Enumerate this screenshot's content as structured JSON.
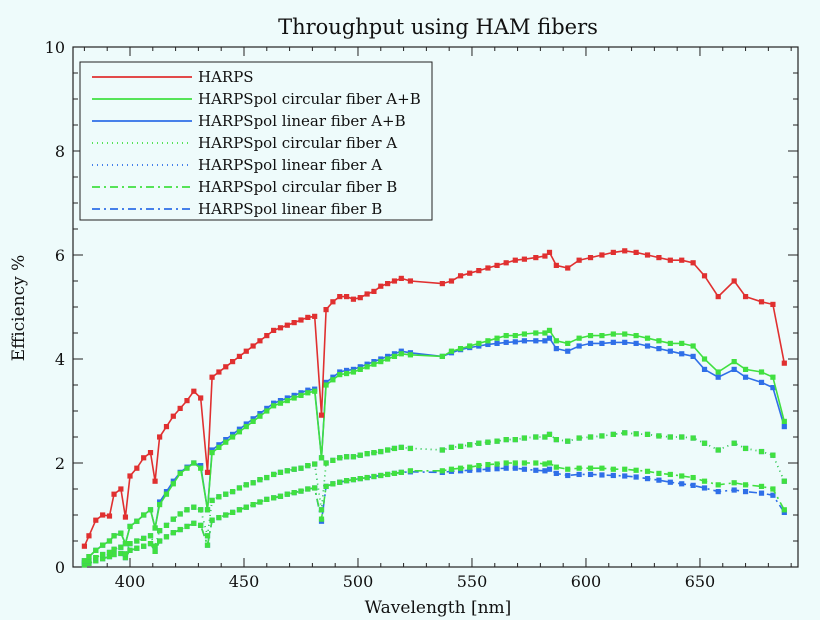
{
  "chart_data": {
    "type": "line",
    "title": "Throughput using HAM fibers",
    "xlabel": "Wavelength [nm]",
    "ylabel": "Efficiency %",
    "xlim": [
      375,
      693
    ],
    "ylim": [
      0,
      10
    ],
    "xticks": [
      400,
      450,
      500,
      550,
      600,
      650
    ],
    "yticks": [
      0,
      2,
      4,
      6,
      8,
      10
    ],
    "grid": false,
    "legend_position": "top-left",
    "x": [
      380,
      382,
      385,
      388,
      391,
      393,
      396,
      398,
      400,
      403,
      406,
      409,
      411,
      413,
      416,
      419,
      422,
      425,
      428,
      431,
      434,
      436,
      439,
      442,
      445,
      448,
      451,
      454,
      457,
      460,
      463,
      466,
      469,
      472,
      475,
      478,
      481,
      484,
      486,
      489,
      492,
      495,
      498,
      501,
      504,
      507,
      510,
      513,
      516,
      519,
      523,
      537,
      541,
      545,
      549,
      553,
      557,
      561,
      565,
      569,
      573,
      578,
      582,
      584,
      587,
      592,
      597,
      602,
      607,
      612,
      617,
      622,
      627,
      632,
      637,
      642,
      647,
      652,
      658,
      665,
      670,
      677,
      682,
      687
    ],
    "series": [
      {
        "name": "HARPS",
        "color": "#e03030",
        "dash": "solid",
        "values": [
          0.4,
          0.6,
          0.9,
          1.0,
          0.98,
          1.4,
          1.5,
          0.96,
          1.75,
          1.9,
          2.1,
          2.2,
          1.65,
          2.5,
          2.7,
          2.9,
          3.05,
          3.2,
          3.38,
          3.25,
          1.82,
          3.65,
          3.75,
          3.85,
          3.95,
          4.05,
          4.15,
          4.25,
          4.35,
          4.45,
          4.55,
          4.6,
          4.65,
          4.7,
          4.75,
          4.8,
          4.82,
          2.92,
          4.95,
          5.1,
          5.2,
          5.2,
          5.15,
          5.18,
          5.25,
          5.3,
          5.4,
          5.45,
          5.5,
          5.55,
          5.5,
          5.45,
          5.5,
          5.6,
          5.65,
          5.7,
          5.75,
          5.8,
          5.85,
          5.9,
          5.92,
          5.95,
          5.98,
          6.05,
          5.8,
          5.75,
          5.9,
          5.95,
          6.0,
          6.05,
          6.08,
          6.05,
          6.0,
          5.95,
          5.9,
          5.9,
          5.85,
          5.6,
          5.2,
          5.5,
          5.2,
          5.1,
          5.05,
          3.92
        ]
      },
      {
        "name": "HARPSpol circular fiber A+B",
        "color": "#40e040",
        "dash": "solid",
        "values": [
          0.12,
          0.2,
          0.32,
          0.42,
          0.5,
          0.6,
          0.65,
          0.45,
          0.78,
          0.88,
          1.0,
          1.1,
          0.75,
          1.2,
          1.4,
          1.6,
          1.8,
          1.9,
          2.0,
          1.9,
          1.1,
          2.2,
          2.3,
          2.4,
          2.5,
          2.6,
          2.7,
          2.8,
          2.9,
          3.0,
          3.1,
          3.15,
          3.2,
          3.25,
          3.3,
          3.35,
          3.38,
          2.1,
          3.5,
          3.6,
          3.7,
          3.72,
          3.75,
          3.8,
          3.85,
          3.9,
          3.95,
          4.0,
          4.05,
          4.1,
          4.08,
          4.05,
          4.15,
          4.2,
          4.25,
          4.3,
          4.35,
          4.4,
          4.45,
          4.45,
          4.48,
          4.5,
          4.5,
          4.55,
          4.35,
          4.3,
          4.4,
          4.45,
          4.45,
          4.48,
          4.48,
          4.45,
          4.4,
          4.35,
          4.3,
          4.3,
          4.25,
          4.0,
          3.75,
          3.95,
          3.8,
          3.75,
          3.65,
          2.8
        ]
      },
      {
        "name": "HARPSpol linear fiber A+B",
        "color": "#2f6fe8",
        "dash": "solid",
        "values": [
          0.12,
          0.2,
          0.32,
          0.42,
          0.5,
          0.6,
          0.65,
          0.45,
          0.78,
          0.88,
          1.0,
          1.1,
          0.75,
          1.25,
          1.45,
          1.65,
          1.82,
          1.92,
          2.0,
          1.95,
          1.1,
          2.25,
          2.35,
          2.45,
          2.55,
          2.65,
          2.75,
          2.85,
          2.95,
          3.05,
          3.15,
          3.2,
          3.25,
          3.3,
          3.35,
          3.4,
          3.42,
          2.1,
          3.55,
          3.65,
          3.75,
          3.78,
          3.8,
          3.85,
          3.9,
          3.95,
          4.0,
          4.05,
          4.1,
          4.15,
          4.12,
          4.05,
          4.12,
          4.18,
          4.22,
          4.25,
          4.28,
          4.3,
          4.32,
          4.33,
          4.35,
          4.35,
          4.35,
          4.4,
          4.2,
          4.15,
          4.25,
          4.3,
          4.3,
          4.32,
          4.32,
          4.3,
          4.25,
          4.2,
          4.15,
          4.1,
          4.05,
          3.8,
          3.65,
          3.8,
          3.65,
          3.55,
          3.45,
          2.7
        ]
      },
      {
        "name": "HARPSpol circular fiber A",
        "color": "#40e040",
        "dash": "1 4",
        "values": [
          0.08,
          0.12,
          0.18,
          0.24,
          0.28,
          0.34,
          0.38,
          0.25,
          0.45,
          0.5,
          0.55,
          0.6,
          0.4,
          0.7,
          0.8,
          0.92,
          1.02,
          1.1,
          1.15,
          1.1,
          0.6,
          1.28,
          1.35,
          1.4,
          1.45,
          1.52,
          1.58,
          1.62,
          1.68,
          1.72,
          1.78,
          1.82,
          1.85,
          1.88,
          1.9,
          1.95,
          1.98,
          1.1,
          2.0,
          2.05,
          2.1,
          2.12,
          2.12,
          2.15,
          2.18,
          2.2,
          2.22,
          2.25,
          2.28,
          2.3,
          2.28,
          2.25,
          2.3,
          2.32,
          2.35,
          2.38,
          2.4,
          2.42,
          2.45,
          2.45,
          2.48,
          2.5,
          2.5,
          2.55,
          2.45,
          2.42,
          2.48,
          2.5,
          2.52,
          2.55,
          2.58,
          2.56,
          2.55,
          2.52,
          2.5,
          2.5,
          2.48,
          2.38,
          2.25,
          2.38,
          2.28,
          2.22,
          2.15,
          1.65
        ]
      },
      {
        "name": "HARPSpol linear fiber A",
        "color": "#2f6fe8",
        "dash": "1 4",
        "values": [
          0.08,
          0.12,
          0.18,
          0.24,
          0.28,
          0.34,
          0.38,
          0.25,
          0.45,
          0.5,
          0.55,
          0.6,
          0.4,
          0.7,
          0.8,
          0.92,
          1.02,
          1.1,
          1.15,
          1.1,
          0.6,
          1.28,
          1.35,
          1.4,
          1.45,
          1.52,
          1.58,
          1.62,
          1.68,
          1.72,
          1.78,
          1.82,
          1.85,
          1.88,
          1.9,
          1.95,
          1.98,
          1.1,
          2.0,
          2.05,
          2.1,
          2.12,
          2.12,
          2.15,
          2.18,
          2.2,
          2.22,
          2.25,
          2.28,
          2.3,
          2.28,
          2.25,
          2.3,
          2.32,
          2.35,
          2.38,
          2.4,
          2.42,
          2.45,
          2.45,
          2.48,
          2.5,
          2.5,
          2.55,
          2.45,
          2.42,
          2.48,
          2.5,
          2.52,
          2.55,
          2.58,
          2.56,
          2.55,
          2.52,
          2.5,
          2.5,
          2.48,
          2.38,
          2.25,
          2.38,
          2.28,
          2.22,
          2.15,
          1.65
        ]
      },
      {
        "name": "HARPSpol circular fiber B",
        "color": "#40e040",
        "dash": "8 4 2 4",
        "values": [
          0.04,
          0.07,
          0.12,
          0.16,
          0.2,
          0.24,
          0.26,
          0.18,
          0.32,
          0.36,
          0.4,
          0.45,
          0.3,
          0.5,
          0.58,
          0.66,
          0.72,
          0.78,
          0.84,
          0.8,
          0.42,
          0.9,
          0.95,
          1.0,
          1.05,
          1.1,
          1.15,
          1.2,
          1.25,
          1.3,
          1.33,
          1.36,
          1.4,
          1.43,
          1.46,
          1.5,
          1.52,
          0.92,
          1.55,
          1.6,
          1.63,
          1.66,
          1.68,
          1.7,
          1.72,
          1.74,
          1.76,
          1.78,
          1.8,
          1.82,
          1.85,
          1.85,
          1.88,
          1.9,
          1.92,
          1.95,
          1.97,
          1.98,
          2.0,
          2.0,
          2.0,
          2.0,
          1.98,
          2.0,
          1.92,
          1.88,
          1.9,
          1.9,
          1.9,
          1.88,
          1.88,
          1.86,
          1.84,
          1.8,
          1.78,
          1.75,
          1.72,
          1.65,
          1.58,
          1.62,
          1.58,
          1.55,
          1.5,
          1.1
        ]
      },
      {
        "name": "HARPSpol linear fiber B",
        "color": "#2f6fe8",
        "dash": "8 4 2 4",
        "values": [
          0.04,
          0.07,
          0.12,
          0.16,
          0.2,
          0.24,
          0.26,
          0.18,
          0.32,
          0.36,
          0.4,
          0.45,
          0.3,
          0.5,
          0.58,
          0.66,
          0.72,
          0.78,
          0.84,
          0.8,
          0.42,
          0.9,
          0.95,
          1.0,
          1.05,
          1.1,
          1.15,
          1.2,
          1.25,
          1.3,
          1.33,
          1.36,
          1.4,
          1.43,
          1.46,
          1.5,
          1.52,
          0.88,
          1.55,
          1.6,
          1.63,
          1.66,
          1.68,
          1.7,
          1.72,
          1.74,
          1.76,
          1.78,
          1.8,
          1.82,
          1.83,
          1.82,
          1.84,
          1.85,
          1.86,
          1.87,
          1.88,
          1.89,
          1.9,
          1.9,
          1.88,
          1.86,
          1.85,
          1.88,
          1.8,
          1.76,
          1.78,
          1.78,
          1.77,
          1.76,
          1.75,
          1.73,
          1.7,
          1.67,
          1.63,
          1.6,
          1.57,
          1.52,
          1.45,
          1.48,
          1.45,
          1.42,
          1.38,
          1.05
        ]
      }
    ]
  }
}
